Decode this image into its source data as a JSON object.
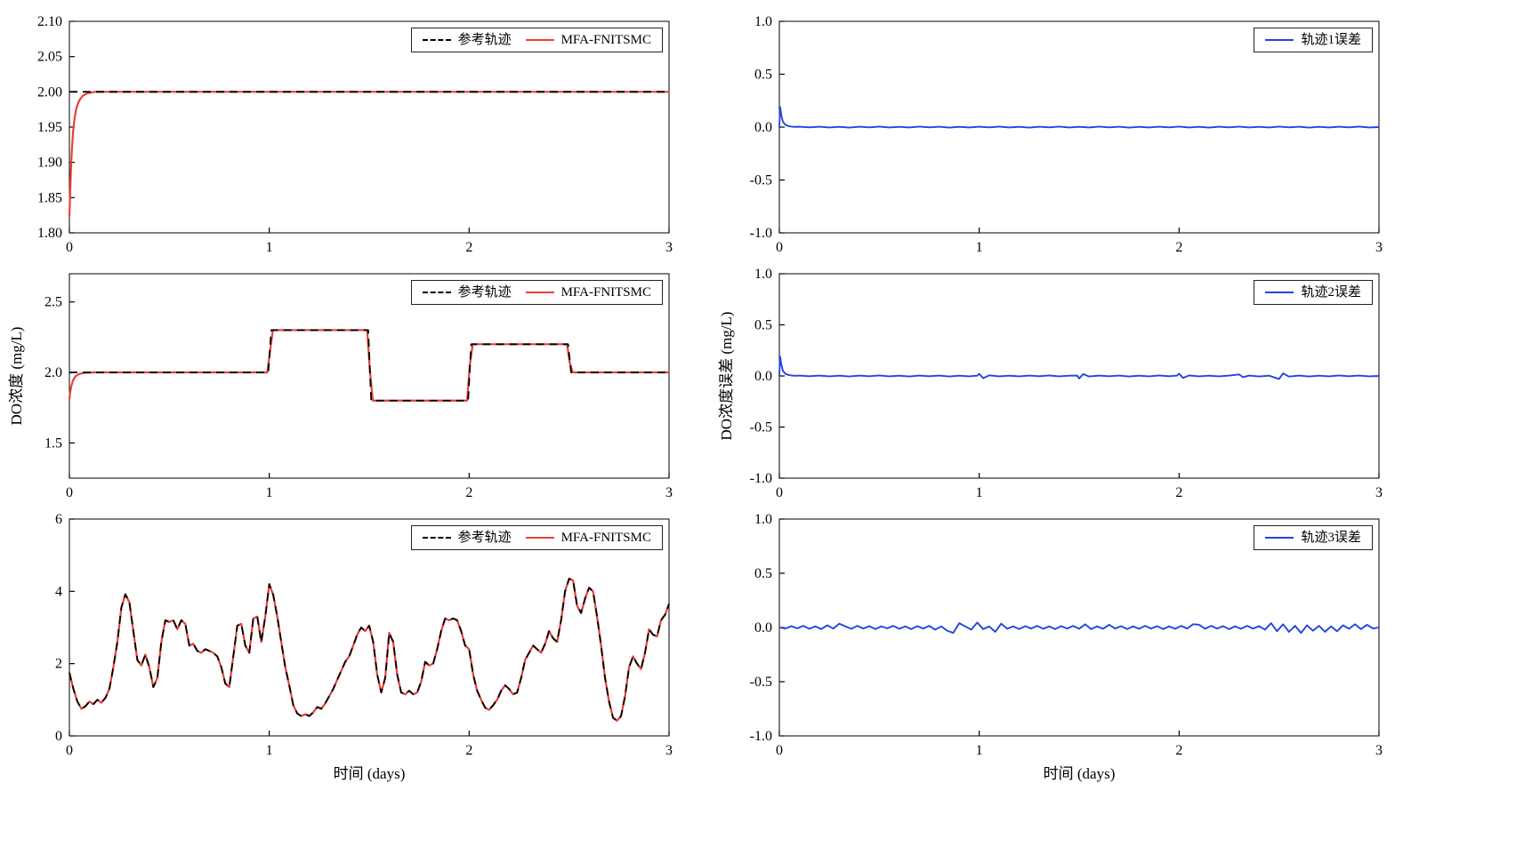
{
  "page": {
    "background": "#ffffff"
  },
  "chart_data": [
    {
      "id": "do-tracking-trajectory-1",
      "type": "line",
      "xlim": [
        0,
        3
      ],
      "ylim": [
        1.8,
        2.1
      ],
      "xticks": {
        "values": [
          0,
          1,
          2,
          3
        ],
        "labels": [
          "0",
          "1",
          "2",
          "3"
        ]
      },
      "yticks": {
        "values": [
          1.8,
          1.85,
          1.9,
          1.95,
          2.0,
          2.05,
          2.1
        ],
        "labels": [
          "1.80",
          "1.85",
          "1.90",
          "1.95",
          "2.00",
          "2.05",
          "2.10"
        ]
      },
      "xlabel": "",
      "ylabel": "",
      "legend_position": "top-right",
      "series": [
        {
          "name": "参考轨迹",
          "color": "#000000",
          "dash": true,
          "width": 1.8,
          "x": [
            0,
            3
          ],
          "y": [
            2.0,
            2.0
          ]
        },
        {
          "name": "MFA-FNITSMC",
          "color": "#e8403a",
          "dash": false,
          "width": 2.2,
          "x": [
            0,
            0.004,
            0.008,
            0.013,
            0.019,
            0.026,
            0.035,
            0.048,
            0.065,
            0.09,
            0.13,
            0.2,
            3
          ],
          "y": [
            1.823,
            1.858,
            1.892,
            1.921,
            1.945,
            1.963,
            1.977,
            1.987,
            1.994,
            1.998,
            2.0,
            2.0,
            2.0
          ]
        }
      ]
    },
    {
      "id": "do-tracking-trajectory-2",
      "type": "line",
      "xlim": [
        0,
        3
      ],
      "ylim": [
        1.25,
        2.7
      ],
      "xticks": {
        "values": [
          0,
          1,
          2,
          3
        ],
        "labels": [
          "0",
          "1",
          "2",
          "3"
        ]
      },
      "yticks": {
        "values": [
          1.5,
          2.0,
          2.5
        ],
        "labels": [
          "1.5",
          "2.0",
          "2.5"
        ]
      },
      "xlabel": "",
      "ylabel": "DO浓度 (mg/L)",
      "legend_position": "top-right",
      "series": [
        {
          "name": "参考轨迹",
          "color": "#000000",
          "dash": true,
          "width": 1.8,
          "x": [
            0,
            0.995,
            1.01,
            1.495,
            1.51,
            1.995,
            2.01,
            2.495,
            2.51,
            3
          ],
          "y": [
            2.0,
            2.0,
            2.3,
            2.3,
            1.8,
            1.8,
            2.2,
            2.2,
            2.0,
            2.0
          ]
        },
        {
          "name": "MFA-FNITSMC",
          "color": "#e8403a",
          "dash": false,
          "width": 2.2,
          "x": [
            0,
            0.004,
            0.01,
            0.018,
            0.03,
            0.05,
            0.08,
            0.13,
            0.99,
            1.003,
            1.018,
            1.49,
            1.503,
            1.518,
            1.99,
            2.003,
            2.018,
            2.49,
            2.503,
            2.518,
            3
          ],
          "y": [
            1.81,
            1.86,
            1.905,
            1.943,
            1.972,
            1.99,
            1.998,
            2.0,
            2.0,
            2.14,
            2.3,
            2.3,
            2.02,
            1.8,
            1.8,
            2.05,
            2.2,
            2.2,
            2.07,
            2.0,
            2.0
          ]
        }
      ]
    },
    {
      "id": "do-tracking-trajectory-3",
      "type": "line",
      "xlim": [
        0,
        3
      ],
      "ylim": [
        0,
        6
      ],
      "xticks": {
        "values": [
          0,
          1,
          2,
          3
        ],
        "labels": [
          "0",
          "1",
          "2",
          "3"
        ]
      },
      "yticks": {
        "values": [
          0,
          2,
          4,
          6
        ],
        "labels": [
          "0",
          "2",
          "4",
          "6"
        ]
      },
      "xlabel": "时间 (days)",
      "ylabel": "",
      "legend_position": "top-right",
      "series": [
        {
          "name": "参考轨迹",
          "color": "#000000",
          "dash": true,
          "width": 1.8,
          "x_start": 0,
          "x_step": 0.02,
          "y": [
            1.75,
            1.3,
            0.95,
            0.75,
            0.82,
            0.95,
            0.88,
            1.0,
            0.92,
            1.05,
            1.3,
            1.9,
            2.6,
            3.55,
            3.92,
            3.7,
            2.9,
            2.1,
            1.95,
            2.25,
            1.9,
            1.35,
            1.6,
            2.6,
            3.2,
            3.15,
            3.2,
            2.95,
            3.2,
            3.1,
            2.5,
            2.55,
            2.35,
            2.3,
            2.4,
            2.35,
            2.3,
            2.2,
            1.9,
            1.45,
            1.35,
            2.2,
            3.05,
            3.1,
            2.5,
            2.3,
            3.25,
            3.3,
            2.6,
            3.3,
            4.2,
            3.9,
            3.3,
            2.6,
            1.9,
            1.4,
            0.85,
            0.62,
            0.55,
            0.6,
            0.55,
            0.65,
            0.8,
            0.75,
            0.9,
            1.1,
            1.3,
            1.55,
            1.8,
            2.05,
            2.2,
            2.5,
            2.8,
            3.0,
            2.9,
            3.05,
            2.6,
            1.7,
            1.2,
            1.6,
            2.85,
            2.6,
            1.7,
            1.2,
            1.15,
            1.25,
            1.15,
            1.2,
            1.5,
            2.05,
            1.95,
            2.0,
            2.4,
            2.9,
            3.25,
            3.2,
            3.25,
            3.2,
            2.9,
            2.5,
            2.4,
            1.7,
            1.25,
            1.0,
            0.78,
            0.72,
            0.85,
            1.0,
            1.25,
            1.4,
            1.3,
            1.15,
            1.2,
            1.6,
            2.1,
            2.3,
            2.5,
            2.4,
            2.3,
            2.55,
            2.9,
            2.7,
            2.6,
            3.2,
            4.0,
            4.35,
            4.3,
            3.6,
            3.4,
            3.8,
            4.1,
            4.0,
            3.3,
            2.5,
            1.6,
            0.95,
            0.5,
            0.42,
            0.55,
            1.1,
            1.9,
            2.2,
            2.0,
            1.85,
            2.3,
            2.95,
            2.8,
            2.75,
            3.2,
            3.35,
            3.65
          ]
        },
        {
          "name": "MFA-FNITSMC",
          "color": "#e8403a",
          "dash": false,
          "width": 2.2
        }
      ]
    },
    {
      "id": "tracking-error-1",
      "type": "line",
      "xlim": [
        0,
        3
      ],
      "ylim": [
        -1.0,
        1.0
      ],
      "xticks": {
        "values": [
          0,
          1,
          2,
          3
        ],
        "labels": [
          "0",
          "1",
          "2",
          "3"
        ]
      },
      "yticks": {
        "values": [
          -1.0,
          -0.5,
          0.0,
          0.5,
          1.0
        ],
        "labels": [
          "-1.0",
          "-0.5",
          "0.0",
          "0.5",
          "1.0"
        ]
      },
      "xlabel": "",
      "ylabel": "",
      "legend_position": "top-right",
      "series": [
        {
          "name": "轨迹1误差",
          "color": "#2344e0",
          "dash": false,
          "width": 1.9,
          "x": [
            0,
            0.004,
            0.01,
            0.018,
            0.03,
            0.045,
            0.06,
            0.08,
            0.1,
            0.15,
            0.2,
            0.25,
            0.3,
            0.35,
            0.4,
            0.45,
            0.5,
            0.55,
            0.6,
            0.65,
            0.7,
            0.75,
            0.8,
            0.85,
            0.9,
            0.95,
            1.0,
            1.05,
            1.1,
            1.15,
            1.2,
            1.25,
            1.3,
            1.35,
            1.4,
            1.45,
            1.5,
            1.55,
            1.6,
            1.65,
            1.7,
            1.75,
            1.8,
            1.85,
            1.9,
            1.95,
            2.0,
            2.05,
            2.1,
            2.15,
            2.2,
            2.25,
            2.3,
            2.35,
            2.4,
            2.45,
            2.5,
            2.55,
            2.6,
            2.65,
            2.7,
            2.75,
            2.8,
            2.85,
            2.9,
            2.95,
            3.0
          ],
          "y": [
            0,
            0.19,
            0.11,
            0.05,
            0.022,
            0.01,
            0.005,
            0.002,
            0.004,
            -0.003,
            0.004,
            -0.004,
            0.003,
            -0.005,
            0.004,
            -0.003,
            0.005,
            -0.004,
            0.003,
            -0.004,
            0.005,
            -0.003,
            0.004,
            -0.005,
            0.003,
            -0.004,
            0.004,
            -0.003,
            0.005,
            -0.004,
            0.003,
            -0.005,
            0.004,
            -0.003,
            0.005,
            -0.004,
            0.003,
            -0.004,
            0.005,
            -0.003,
            0.004,
            -0.005,
            0.003,
            -0.004,
            0.004,
            -0.003,
            0.005,
            -0.004,
            0.003,
            -0.005,
            0.004,
            -0.003,
            0.005,
            -0.004,
            0.003,
            -0.004,
            0.005,
            -0.003,
            0.004,
            -0.005,
            0.003,
            -0.004,
            0.004,
            -0.003,
            0.005,
            -0.004,
            0.0
          ]
        }
      ]
    },
    {
      "id": "tracking-error-2",
      "type": "line",
      "xlim": [
        0,
        3
      ],
      "ylim": [
        -1.0,
        1.0
      ],
      "xticks": {
        "values": [
          0,
          1,
          2,
          3
        ],
        "labels": [
          "0",
          "1",
          "2",
          "3"
        ]
      },
      "yticks": {
        "values": [
          -1.0,
          -0.5,
          0.0,
          0.5,
          1.0
        ],
        "labels": [
          "-1.0",
          "-0.5",
          "0.0",
          "0.5",
          "1.0"
        ]
      },
      "xlabel": "",
      "ylabel": "DO浓度误差 (mg/L)",
      "legend_position": "top-right",
      "series": [
        {
          "name": "轨迹2误差",
          "color": "#2344e0",
          "dash": false,
          "width": 1.9,
          "x": [
            0,
            0.004,
            0.01,
            0.018,
            0.03,
            0.045,
            0.06,
            0.08,
            0.1,
            0.15,
            0.2,
            0.25,
            0.3,
            0.35,
            0.4,
            0.45,
            0.5,
            0.55,
            0.6,
            0.65,
            0.7,
            0.75,
            0.8,
            0.85,
            0.9,
            0.95,
            0.99,
            1.0,
            1.02,
            1.05,
            1.1,
            1.15,
            1.2,
            1.25,
            1.3,
            1.35,
            1.4,
            1.45,
            1.49,
            1.5,
            1.52,
            1.55,
            1.6,
            1.65,
            1.7,
            1.75,
            1.8,
            1.85,
            1.9,
            1.95,
            1.99,
            2.0,
            2.02,
            2.05,
            2.1,
            2.15,
            2.2,
            2.25,
            2.3,
            2.32,
            2.35,
            2.4,
            2.45,
            2.5,
            2.52,
            2.55,
            2.6,
            2.65,
            2.7,
            2.75,
            2.8,
            2.85,
            2.9,
            2.95,
            3.0
          ],
          "y": [
            0,
            0.19,
            0.11,
            0.05,
            0.022,
            0.01,
            0.005,
            0.002,
            0.004,
            -0.003,
            0.004,
            -0.004,
            0.003,
            -0.005,
            0.004,
            -0.003,
            0.005,
            -0.004,
            0.003,
            -0.005,
            0.004,
            -0.003,
            0.004,
            -0.005,
            0.003,
            -0.004,
            0.003,
            0.02,
            -0.022,
            0.006,
            -0.004,
            0.003,
            -0.004,
            0.004,
            -0.003,
            0.005,
            -0.004,
            0.003,
            0.004,
            -0.025,
            0.018,
            -0.005,
            0.004,
            -0.003,
            0.004,
            -0.005,
            0.003,
            -0.004,
            0.005,
            -0.003,
            0.004,
            0.022,
            -0.02,
            0.005,
            -0.004,
            0.003,
            -0.004,
            0.004,
            0.015,
            -0.012,
            0.004,
            -0.005,
            0.003,
            -0.03,
            0.025,
            -0.006,
            0.004,
            -0.005,
            0.003,
            -0.004,
            0.005,
            -0.003,
            0.004,
            -0.004,
            0.0
          ]
        }
      ]
    },
    {
      "id": "tracking-error-3",
      "type": "line",
      "xlim": [
        0,
        3
      ],
      "ylim": [
        -1.0,
        1.0
      ],
      "xticks": {
        "values": [
          0,
          1,
          2,
          3
        ],
        "labels": [
          "0",
          "1",
          "2",
          "3"
        ]
      },
      "yticks": {
        "values": [
          -1.0,
          -0.5,
          0.0,
          0.5,
          1.0
        ],
        "labels": [
          "-1.0",
          "-0.5",
          "0.0",
          "0.5",
          "1.0"
        ]
      },
      "xlabel": "时间 (days)",
      "ylabel": "",
      "legend_position": "top-right",
      "series": [
        {
          "name": "轨迹3误差",
          "color": "#2344e0",
          "dash": false,
          "width": 1.9,
          "x_start": 0,
          "x_step": 0.03,
          "y": [
            0.0,
            -0.01,
            0.012,
            -0.008,
            0.015,
            -0.012,
            0.01,
            -0.015,
            0.02,
            -0.01,
            0.035,
            0.01,
            -0.012,
            0.015,
            -0.01,
            0.012,
            -0.015,
            0.01,
            -0.008,
            0.015,
            -0.012,
            0.01,
            -0.015,
            0.012,
            -0.01,
            0.015,
            -0.02,
            0.01,
            -0.03,
            -0.05,
            0.04,
            0.01,
            -0.02,
            0.045,
            -0.015,
            0.01,
            -0.04,
            0.035,
            -0.012,
            0.01,
            -0.015,
            0.012,
            -0.01,
            0.015,
            -0.012,
            0.01,
            -0.015,
            0.012,
            -0.01,
            0.015,
            -0.012,
            0.03,
            -0.015,
            0.01,
            -0.012,
            0.025,
            -0.01,
            0.012,
            -0.015,
            0.01,
            -0.012,
            0.015,
            -0.01,
            0.012,
            -0.015,
            0.01,
            -0.012,
            0.015,
            -0.01,
            0.03,
            0.025,
            -0.012,
            0.015,
            -0.01,
            0.012,
            -0.015,
            0.01,
            -0.012,
            0.015,
            -0.01,
            0.012,
            -0.02,
            0.04,
            -0.035,
            0.03,
            -0.04,
            0.015,
            -0.05,
            0.02,
            -0.03,
            0.015,
            -0.04,
            0.01,
            -0.035,
            0.02,
            -0.012,
            0.03,
            -0.015,
            0.025,
            -0.01,
            0.0
          ]
        }
      ]
    }
  ]
}
